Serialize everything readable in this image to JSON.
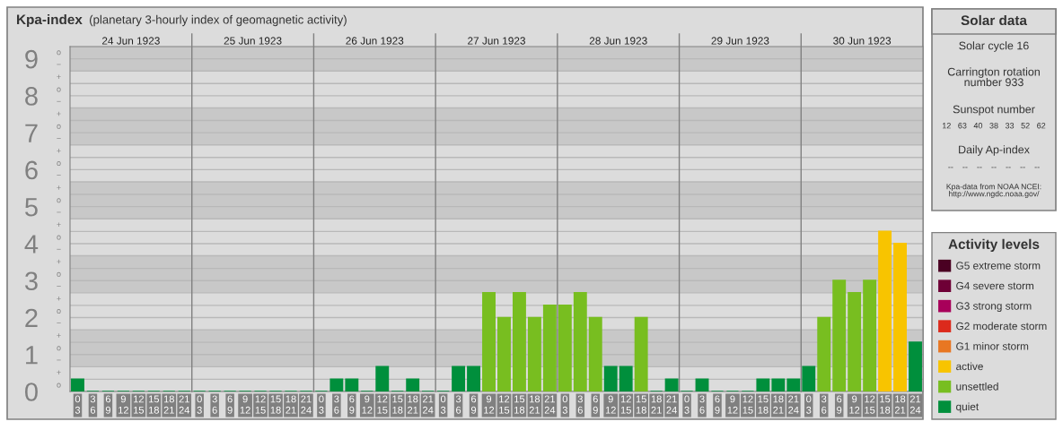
{
  "chart_data": [
    {
      "type": "bar",
      "title": "Kpa-index",
      "subtitle": "(planetary 3-hourly index of geomagnetic activity)",
      "categories": [
        "0\n3",
        "3\n6",
        "6\n9",
        "9\n12",
        "12\n15",
        "15\n18",
        "18\n21",
        "21\n24",
        "0\n3",
        "3\n6",
        "6\n9",
        "9\n12",
        "12\n15",
        "15\n18",
        "18\n21",
        "21\n24",
        "0\n3",
        "3\n6",
        "6\n9",
        "9\n12",
        "12\n15",
        "15\n18",
        "18\n21",
        "21\n24",
        "0\n3",
        "3\n6",
        "6\n9",
        "9\n12",
        "12\n15",
        "15\n18",
        "18\n21",
        "21\n24",
        "0\n3",
        "3\n6",
        "6\n9",
        "9\n12",
        "12\n15",
        "15\n18",
        "18\n21",
        "21\n24",
        "0\n3",
        "3\n6",
        "6\n9",
        "9\n12",
        "12\n15",
        "15\n18",
        "18\n21",
        "21\n24",
        "0\n3",
        "3\n6",
        "6\n9",
        "9\n12",
        "12\n15",
        "15\n18",
        "18\n21",
        "21\n24"
      ],
      "series": [
        {
          "name": "G5 extreme storm",
          "color": "#4a0022",
          "values": [
            null,
            null,
            null,
            null,
            null,
            null,
            null,
            null,
            null,
            null,
            null,
            null,
            null,
            null,
            null,
            null,
            null,
            null,
            null,
            null,
            null,
            null,
            null,
            null,
            null,
            null,
            null,
            null,
            null,
            null,
            null,
            null,
            null,
            null,
            null,
            null,
            null,
            null,
            null,
            null,
            null,
            null,
            null,
            null,
            null,
            null,
            null,
            null,
            null,
            null,
            null,
            null,
            null,
            null,
            null,
            null
          ]
        },
        {
          "name": "G4 severe storm",
          "color": "#6e0036",
          "values": [
            null,
            null,
            null,
            null,
            null,
            null,
            null,
            null,
            null,
            null,
            null,
            null,
            null,
            null,
            null,
            null,
            null,
            null,
            null,
            null,
            null,
            null,
            null,
            null,
            null,
            null,
            null,
            null,
            null,
            null,
            null,
            null,
            null,
            null,
            null,
            null,
            null,
            null,
            null,
            null,
            null,
            null,
            null,
            null,
            null,
            null,
            null,
            null,
            null,
            null,
            null,
            null,
            null,
            null,
            null,
            null
          ]
        },
        {
          "name": "G3 strong storm",
          "color": "#a8005a",
          "values": [
            null,
            null,
            null,
            null,
            null,
            null,
            null,
            null,
            null,
            null,
            null,
            null,
            null,
            null,
            null,
            null,
            null,
            null,
            null,
            null,
            null,
            null,
            null,
            null,
            null,
            null,
            null,
            null,
            null,
            null,
            null,
            null,
            null,
            null,
            null,
            null,
            null,
            null,
            null,
            null,
            null,
            null,
            null,
            null,
            null,
            null,
            null,
            null,
            null,
            null,
            null,
            null,
            null,
            null,
            null,
            null
          ]
        },
        {
          "name": "G2 moderate storm",
          "color": "#dc2a1c",
          "values": [
            null,
            null,
            null,
            null,
            null,
            null,
            null,
            null,
            null,
            null,
            null,
            null,
            null,
            null,
            null,
            null,
            null,
            null,
            null,
            null,
            null,
            null,
            null,
            null,
            null,
            null,
            null,
            null,
            null,
            null,
            null,
            null,
            null,
            null,
            null,
            null,
            null,
            null,
            null,
            null,
            null,
            null,
            null,
            null,
            null,
            null,
            null,
            null,
            null,
            null,
            null,
            null,
            null,
            null,
            null,
            null
          ]
        },
        {
          "name": "G1 minor storm",
          "color": "#e87722",
          "values": [
            null,
            null,
            null,
            null,
            null,
            null,
            null,
            null,
            null,
            null,
            null,
            null,
            null,
            null,
            null,
            null,
            null,
            null,
            null,
            null,
            null,
            null,
            null,
            null,
            null,
            null,
            null,
            null,
            null,
            null,
            null,
            null,
            null,
            null,
            null,
            null,
            null,
            null,
            null,
            null,
            null,
            null,
            null,
            null,
            null,
            null,
            null,
            null,
            null,
            null,
            null,
            null,
            null,
            null,
            null,
            null
          ]
        },
        {
          "name": "active",
          "color": "#f8c400",
          "values": [
            null,
            null,
            null,
            null,
            null,
            null,
            null,
            null,
            null,
            null,
            null,
            null,
            null,
            null,
            null,
            null,
            null,
            null,
            null,
            null,
            null,
            null,
            null,
            null,
            null,
            null,
            null,
            null,
            null,
            null,
            null,
            null,
            null,
            null,
            null,
            null,
            null,
            null,
            null,
            null,
            null,
            null,
            null,
            null,
            null,
            null,
            null,
            null,
            null,
            null,
            null,
            null,
            null,
            4.33,
            4,
            null
          ]
        },
        {
          "name": "unsettled",
          "color": "#78be20",
          "values": [
            null,
            null,
            null,
            null,
            null,
            null,
            null,
            null,
            null,
            null,
            null,
            null,
            null,
            null,
            null,
            null,
            null,
            null,
            null,
            null,
            null,
            null,
            null,
            null,
            null,
            null,
            null,
            2.67,
            2,
            2.67,
            2,
            2.33,
            2.33,
            2.67,
            2,
            null,
            null,
            2,
            null,
            null,
            null,
            null,
            null,
            null,
            null,
            null,
            null,
            null,
            null,
            2,
            3,
            2.67,
            3,
            null,
            null,
            null
          ]
        },
        {
          "name": "quiet",
          "color": "#008f3c",
          "values": [
            0.33,
            0,
            0,
            0,
            0,
            0,
            0,
            0,
            0,
            0,
            0,
            0,
            0,
            0,
            0,
            0,
            0,
            0.33,
            0.33,
            0,
            0.67,
            0,
            0.33,
            0,
            0,
            0.67,
            0.67,
            null,
            null,
            null,
            null,
            null,
            null,
            null,
            null,
            0.67,
            0.67,
            null,
            0,
            0.33,
            0,
            0.33,
            0,
            0,
            0,
            0.33,
            0.33,
            0.33,
            0.67,
            null,
            null,
            null,
            null,
            null,
            null,
            1.33
          ]
        }
      ],
      "ylim": [
        0,
        9.33
      ],
      "yticks": [
        0,
        {
          "value": 0.33,
          "label": null
        },
        {
          "value": 0.67,
          "label": null
        },
        1,
        {
          "value": 1.33,
          "label": null
        },
        {
          "value": 1.67,
          "label": null
        },
        2,
        {
          "value": 2.33,
          "label": null
        },
        {
          "value": 2.67,
          "label": null
        },
        3,
        {
          "value": 3.33,
          "label": null
        },
        {
          "value": 3.67,
          "label": null
        },
        4,
        {
          "value": 4.33,
          "label": null
        },
        {
          "value": 4.67,
          "label": null
        },
        5,
        {
          "value": 5.33,
          "label": null
        },
        {
          "value": 5.67,
          "label": null
        },
        6,
        {
          "value": 6.33,
          "label": null
        },
        {
          "value": 6.67,
          "label": null
        },
        7,
        {
          "value": 7.33,
          "label": null
        },
        {
          "value": 7.67,
          "label": null
        },
        8,
        {
          "value": 8.33,
          "label": null
        },
        {
          "value": 8.67,
          "label": null
        },
        9
      ],
      "grid": "y",
      "annotations": [
        "24 Jun 1923",
        "25 Jun 1923",
        "26 Jun 1923",
        "27 Jun 1923",
        "28 Jun 1923",
        "29 Jun 1923",
        "30 Jun 1923",
        "o",
        "+",
        "−",
        "o",
        "+",
        "−",
        "o",
        "+",
        "−",
        "o",
        "+",
        "−",
        "o",
        "+",
        "−",
        "o",
        "+",
        "−",
        "o",
        "+",
        "−",
        "o",
        "+",
        "−",
        "o",
        "+",
        "−",
        "o"
      ],
      "bands": [
        {
          "axis": "y",
          "from": 0.67,
          "to": 1.67,
          "color": "#c8c8c8"
        },
        {
          "axis": "y",
          "from": 2.67,
          "to": 3.67,
          "color": "#c8c8c8"
        },
        {
          "axis": "y",
          "from": 4.67,
          "to": 5.67,
          "color": "#c8c8c8"
        },
        {
          "axis": "y",
          "from": 6.67,
          "to": 7.67,
          "color": "#c8c8c8"
        },
        {
          "axis": "y",
          "from": 8.67,
          "to": 9.33,
          "color": "#c8c8c8"
        }
      ],
      "legend_title": "Activity levels",
      "legend": "right"
    },
    {
      "type": "other",
      "title": "Solar data",
      "annotations": [
        "Solar cycle 16",
        "Carrington rotation\nnumber 933",
        "Sunspot number",
        "12   63   40   38   33   52   62",
        "Daily Ap-index",
        "--    --    --    --    --    --    --",
        "Kpa-data from NOAA NCEI:\nhttp://www.ngdc.noaa.gov/"
      ]
    }
  ]
}
